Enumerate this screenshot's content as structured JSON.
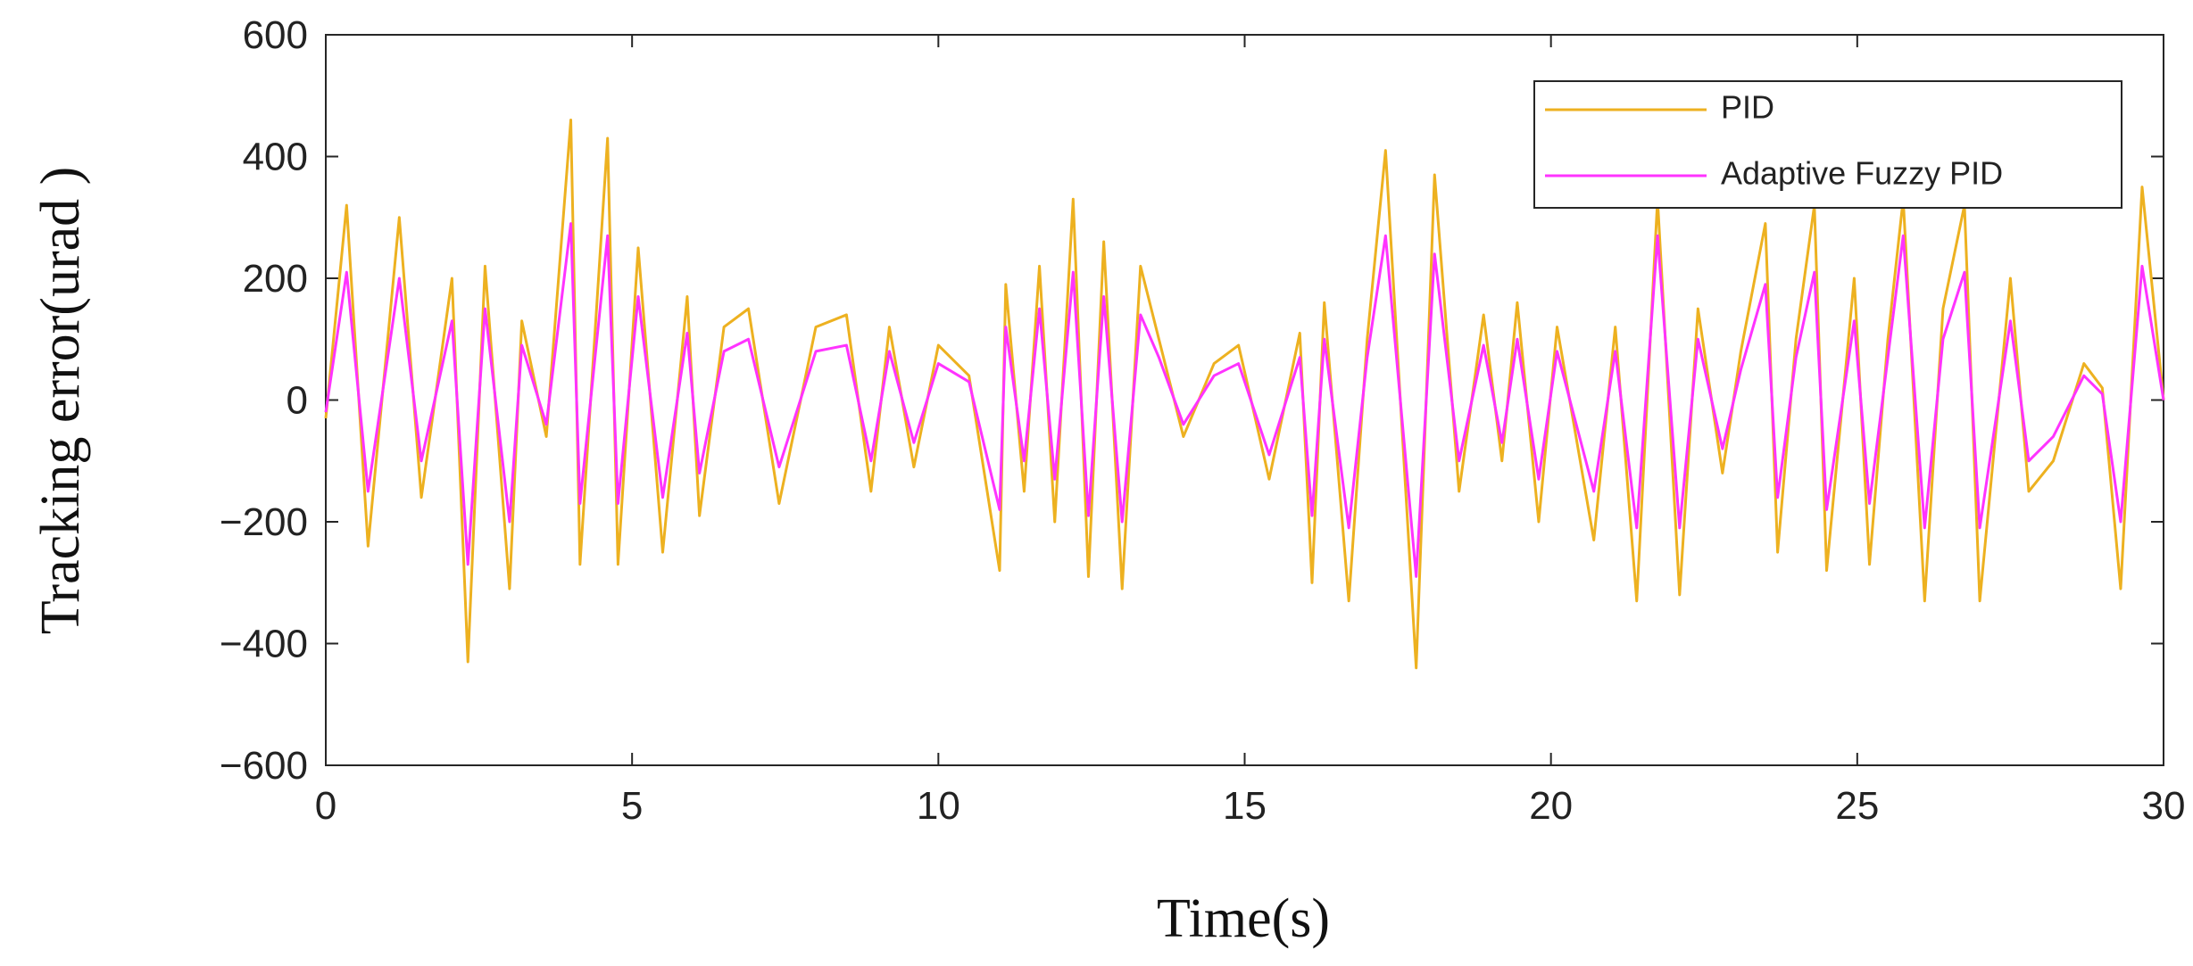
{
  "chart_data": {
    "type": "line",
    "xlabel": "Time(s)",
    "ylabel": "Tracking error(urad )",
    "x": [
      0,
      0.34,
      0.69,
      1.2,
      1.56,
      2.06,
      2.32,
      2.6,
      3.0,
      3.2,
      3.6,
      4.0,
      4.15,
      4.6,
      4.77,
      5.1,
      5.5,
      5.9,
      6.1,
      6.5,
      6.9,
      7.4,
      8.0,
      8.5,
      8.9,
      9.2,
      9.6,
      10.0,
      10.5,
      11.0,
      11.1,
      11.4,
      11.65,
      11.9,
      12.2,
      12.45,
      12.7,
      13.0,
      13.3,
      13.6,
      14.0,
      14.5,
      14.9,
      15.4,
      15.9,
      16.1,
      16.3,
      16.7,
      17.0,
      17.3,
      17.8,
      18.1,
      18.5,
      18.9,
      19.2,
      19.45,
      19.8,
      20.1,
      20.7,
      21.05,
      21.4,
      21.74,
      22.1,
      22.4,
      22.8,
      23.1,
      23.5,
      23.7,
      24.0,
      24.3,
      24.5,
      24.95,
      25.2,
      25.5,
      25.75,
      26.1,
      26.4,
      26.75,
      27.0,
      27.5,
      27.8,
      28.2,
      28.7,
      29.0,
      29.3,
      29.65,
      30
    ],
    "series": [
      {
        "name": "PID",
        "color": "#edb120",
        "values": [
          -30,
          320,
          -240,
          300,
          -160,
          200,
          -430,
          220,
          -310,
          130,
          -60,
          460,
          -270,
          430,
          -270,
          250,
          -250,
          170,
          -190,
          120,
          150,
          -170,
          120,
          140,
          -150,
          120,
          -110,
          90,
          40,
          -280,
          190,
          -150,
          220,
          -200,
          330,
          -290,
          260,
          -310,
          220,
          100,
          -60,
          60,
          90,
          -130,
          110,
          -300,
          160,
          -330,
          100,
          410,
          -440,
          370,
          -150,
          140,
          -100,
          160,
          -200,
          120,
          -230,
          120,
          -330,
          330,
          -320,
          150,
          -120,
          80,
          290,
          -250,
          100,
          320,
          -280,
          200,
          -270,
          100,
          330,
          -330,
          150,
          320,
          -330,
          200,
          -150,
          -100,
          60,
          20,
          -310,
          350,
          0
        ]
      },
      {
        "name": "Adaptive Fuzzy PID",
        "color": "#ff33ff",
        "values": [
          -20,
          210,
          -150,
          200,
          -100,
          130,
          -270,
          150,
          -200,
          90,
          -40,
          290,
          -170,
          270,
          -170,
          170,
          -160,
          110,
          -120,
          80,
          100,
          -110,
          80,
          90,
          -100,
          80,
          -70,
          60,
          30,
          -180,
          120,
          -100,
          150,
          -130,
          210,
          -190,
          170,
          -200,
          140,
          70,
          -40,
          40,
          60,
          -90,
          70,
          -190,
          100,
          -210,
          70,
          270,
          -290,
          240,
          -100,
          90,
          -70,
          100,
          -130,
          80,
          -150,
          80,
          -210,
          270,
          -210,
          100,
          -80,
          50,
          190,
          -160,
          70,
          210,
          -180,
          130,
          -170,
          70,
          270,
          -210,
          100,
          210,
          -210,
          130,
          -100,
          -60,
          40,
          10,
          -200,
          220,
          0
        ]
      }
    ],
    "xlim": [
      0,
      30
    ],
    "xticks": [
      0,
      5,
      10,
      15,
      20,
      25,
      30
    ],
    "ylim": [
      -600,
      600
    ],
    "yticks": [
      {
        "value": -600,
        "label": "−600"
      },
      {
        "value": -400,
        "label": "−400"
      },
      {
        "value": -200,
        "label": "−200"
      },
      0,
      200,
      400,
      600
    ],
    "grid": false,
    "legend": "upper right"
  }
}
